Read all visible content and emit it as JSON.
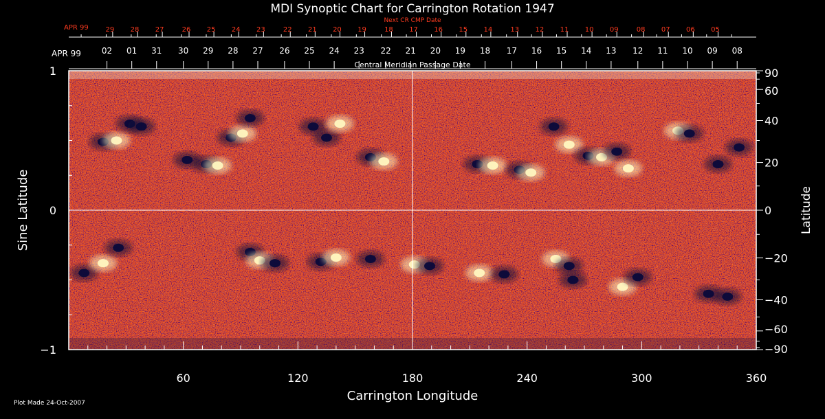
{
  "footer": {
    "plot_made": "Plot Made 24-Oct-2007"
  },
  "chart_data": {
    "type": "heatmap",
    "title": "MDI Synoptic Chart for Carrington Rotation 1947",
    "xlabel": "Carrington Longitude",
    "ylabel_left": "Sine Latitude",
    "ylabel_right": "Latitude",
    "xlim": [
      0,
      360
    ],
    "ylim": [
      -1,
      1
    ],
    "x_ticks": [
      60,
      120,
      180,
      240,
      300,
      360
    ],
    "y_ticks_left": [
      {
        "value": 1,
        "label": "1"
      },
      {
        "value": 0,
        "label": "0"
      },
      {
        "value": -1,
        "label": "−1"
      }
    ],
    "y_ticks_right": [
      {
        "value": 90,
        "label": "90"
      },
      {
        "value": 60,
        "label": "60"
      },
      {
        "value": 40,
        "label": "40"
      },
      {
        "value": 20,
        "label": "20"
      },
      {
        "value": 0,
        "label": "0"
      },
      {
        "value": -20,
        "label": "−20"
      },
      {
        "value": -40,
        "label": "−40"
      },
      {
        "value": -60,
        "label": "−60"
      },
      {
        "value": -90,
        "label": "−90"
      }
    ],
    "cmp_axis": {
      "label": "Central Meridian Passage Date",
      "month_label": "APR 99",
      "dates": [
        {
          "lon": 20,
          "label": "02"
        },
        {
          "lon": 33,
          "label": "01"
        },
        {
          "lon": 46,
          "label": "31"
        },
        {
          "lon": 60,
          "label": "30"
        },
        {
          "lon": 73,
          "label": "29"
        },
        {
          "lon": 86,
          "label": "28"
        },
        {
          "lon": 99,
          "label": "27"
        },
        {
          "lon": 113,
          "label": "26"
        },
        {
          "lon": 126,
          "label": "25"
        },
        {
          "lon": 139,
          "label": "24"
        },
        {
          "lon": 152,
          "label": "23"
        },
        {
          "lon": 166,
          "label": "22"
        },
        {
          "lon": 179,
          "label": "21"
        },
        {
          "lon": 192,
          "label": "20"
        },
        {
          "lon": 205,
          "label": "19"
        },
        {
          "lon": 218,
          "label": "18"
        },
        {
          "lon": 232,
          "label": "17"
        },
        {
          "lon": 245,
          "label": "16"
        },
        {
          "lon": 258,
          "label": "15"
        },
        {
          "lon": 271,
          "label": "14"
        },
        {
          "lon": 284,
          "label": "13"
        },
        {
          "lon": 298,
          "label": "12"
        },
        {
          "lon": 311,
          "label": "11"
        },
        {
          "lon": 324,
          "label": "10"
        },
        {
          "lon": 337,
          "label": "09"
        },
        {
          "lon": 350,
          "label": "08"
        }
      ]
    },
    "next_cr_axis": {
      "label": "Next CR CMP Date",
      "month_label": "APR 99",
      "dates": [
        {
          "lon": 23,
          "label": "29"
        },
        {
          "lon": 36,
          "label": "28"
        },
        {
          "lon": 49,
          "label": "27"
        },
        {
          "lon": 63,
          "label": "26"
        },
        {
          "lon": 76,
          "label": "25"
        },
        {
          "lon": 89,
          "label": "24"
        },
        {
          "lon": 102,
          "label": "23"
        },
        {
          "lon": 116,
          "label": "22"
        },
        {
          "lon": 129,
          "label": "21"
        },
        {
          "lon": 142,
          "label": "20"
        },
        {
          "lon": 155,
          "label": "19"
        },
        {
          "lon": 169,
          "label": "18"
        },
        {
          "lon": 182,
          "label": "17"
        },
        {
          "lon": 195,
          "label": "16"
        },
        {
          "lon": 208,
          "label": "15"
        },
        {
          "lon": 221,
          "label": "14"
        },
        {
          "lon": 235,
          "label": "13"
        },
        {
          "lon": 248,
          "label": "12"
        },
        {
          "lon": 261,
          "label": "11"
        },
        {
          "lon": 274,
          "label": "10"
        },
        {
          "lon": 287,
          "label": "09"
        },
        {
          "lon": 301,
          "label": "08"
        },
        {
          "lon": 314,
          "label": "07"
        },
        {
          "lon": 327,
          "label": "06"
        },
        {
          "lon": 340,
          "label": "05"
        }
      ]
    },
    "colors": {
      "background_field": "#e8501a",
      "positive_flux": "#fff7c0",
      "negative_flux": "#0a0a3a",
      "secondary_axis": "#ff3b1f",
      "axes": "#ffffff"
    },
    "grid_lines": {
      "lon": [
        180
      ],
      "sinlat": [
        0
      ]
    },
    "features": [
      {
        "lon": 18,
        "sinlat": 0.49,
        "polarity": "negative"
      },
      {
        "lon": 25,
        "sinlat": 0.5,
        "polarity": "positive"
      },
      {
        "lon": 32,
        "sinlat": 0.62,
        "polarity": "negative"
      },
      {
        "lon": 38,
        "sinlat": 0.6,
        "polarity": "negative"
      },
      {
        "lon": 62,
        "sinlat": 0.36,
        "polarity": "negative"
      },
      {
        "lon": 72,
        "sinlat": 0.33,
        "polarity": "negative"
      },
      {
        "lon": 78,
        "sinlat": 0.32,
        "polarity": "positive"
      },
      {
        "lon": 85,
        "sinlat": 0.52,
        "polarity": "negative"
      },
      {
        "lon": 91,
        "sinlat": 0.55,
        "polarity": "positive"
      },
      {
        "lon": 95,
        "sinlat": 0.66,
        "polarity": "negative"
      },
      {
        "lon": 128,
        "sinlat": 0.6,
        "polarity": "negative"
      },
      {
        "lon": 135,
        "sinlat": 0.52,
        "polarity": "negative"
      },
      {
        "lon": 142,
        "sinlat": 0.62,
        "polarity": "positive"
      },
      {
        "lon": 158,
        "sinlat": 0.38,
        "polarity": "negative"
      },
      {
        "lon": 165,
        "sinlat": 0.35,
        "polarity": "positive"
      },
      {
        "lon": 214,
        "sinlat": 0.33,
        "polarity": "negative"
      },
      {
        "lon": 222,
        "sinlat": 0.32,
        "polarity": "positive"
      },
      {
        "lon": 236,
        "sinlat": 0.29,
        "polarity": "negative"
      },
      {
        "lon": 242,
        "sinlat": 0.27,
        "polarity": "positive"
      },
      {
        "lon": 254,
        "sinlat": 0.6,
        "polarity": "negative"
      },
      {
        "lon": 262,
        "sinlat": 0.47,
        "polarity": "positive"
      },
      {
        "lon": 272,
        "sinlat": 0.39,
        "polarity": "negative"
      },
      {
        "lon": 279,
        "sinlat": 0.38,
        "polarity": "positive"
      },
      {
        "lon": 287,
        "sinlat": 0.42,
        "polarity": "negative"
      },
      {
        "lon": 293,
        "sinlat": 0.3,
        "polarity": "positive"
      },
      {
        "lon": 319,
        "sinlat": 0.57,
        "polarity": "positive"
      },
      {
        "lon": 325,
        "sinlat": 0.55,
        "polarity": "negative"
      },
      {
        "lon": 340,
        "sinlat": 0.33,
        "polarity": "negative"
      },
      {
        "lon": 351,
        "sinlat": 0.45,
        "polarity": "negative"
      },
      {
        "lon": 8,
        "sinlat": -0.45,
        "polarity": "negative"
      },
      {
        "lon": 18,
        "sinlat": -0.38,
        "polarity": "positive"
      },
      {
        "lon": 26,
        "sinlat": -0.27,
        "polarity": "negative"
      },
      {
        "lon": 95,
        "sinlat": -0.3,
        "polarity": "negative"
      },
      {
        "lon": 100,
        "sinlat": -0.36,
        "polarity": "positive"
      },
      {
        "lon": 108,
        "sinlat": -0.38,
        "polarity": "negative"
      },
      {
        "lon": 132,
        "sinlat": -0.37,
        "polarity": "negative"
      },
      {
        "lon": 140,
        "sinlat": -0.34,
        "polarity": "positive"
      },
      {
        "lon": 158,
        "sinlat": -0.35,
        "polarity": "negative"
      },
      {
        "lon": 181,
        "sinlat": -0.39,
        "polarity": "positive"
      },
      {
        "lon": 189,
        "sinlat": -0.4,
        "polarity": "negative"
      },
      {
        "lon": 215,
        "sinlat": -0.45,
        "polarity": "positive"
      },
      {
        "lon": 228,
        "sinlat": -0.46,
        "polarity": "negative"
      },
      {
        "lon": 255,
        "sinlat": -0.35,
        "polarity": "positive"
      },
      {
        "lon": 262,
        "sinlat": -0.4,
        "polarity": "negative"
      },
      {
        "lon": 264,
        "sinlat": -0.5,
        "polarity": "negative"
      },
      {
        "lon": 290,
        "sinlat": -0.55,
        "polarity": "positive"
      },
      {
        "lon": 298,
        "sinlat": -0.48,
        "polarity": "negative"
      },
      {
        "lon": 335,
        "sinlat": -0.6,
        "polarity": "negative"
      },
      {
        "lon": 345,
        "sinlat": -0.62,
        "polarity": "negative"
      }
    ]
  }
}
